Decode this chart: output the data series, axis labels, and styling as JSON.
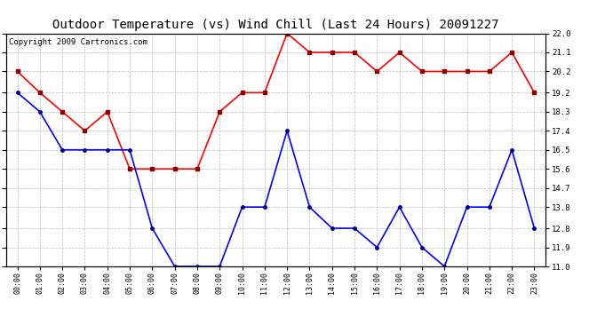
{
  "title": "Outdoor Temperature (vs) Wind Chill (Last 24 Hours) 20091227",
  "copyright": "Copyright 2009 Cartronics.com",
  "x_labels": [
    "00:00",
    "01:00",
    "02:00",
    "03:00",
    "04:00",
    "05:00",
    "06:00",
    "07:00",
    "08:00",
    "09:00",
    "10:00",
    "11:00",
    "12:00",
    "13:00",
    "14:00",
    "15:00",
    "16:00",
    "17:00",
    "18:00",
    "19:00",
    "20:00",
    "21:00",
    "22:00",
    "23:00"
  ],
  "temp_red": [
    20.2,
    19.2,
    18.3,
    17.4,
    18.3,
    15.6,
    15.6,
    15.6,
    15.6,
    18.3,
    19.2,
    19.2,
    22.0,
    21.1,
    21.1,
    21.1,
    20.2,
    21.1,
    20.2,
    20.2,
    20.2,
    20.2,
    21.1,
    19.2
  ],
  "wind_chill_blue": [
    19.2,
    18.3,
    16.5,
    16.5,
    16.5,
    16.5,
    12.8,
    11.0,
    11.0,
    11.0,
    13.8,
    13.8,
    17.4,
    13.8,
    12.8,
    12.8,
    11.9,
    13.8,
    11.9,
    11.0,
    13.8,
    13.8,
    16.5,
    12.8
  ],
  "ylim": [
    11.0,
    22.0
  ],
  "yticks": [
    11.0,
    11.9,
    12.8,
    13.8,
    14.7,
    15.6,
    16.5,
    17.4,
    18.3,
    19.2,
    20.2,
    21.1,
    22.0
  ],
  "red_color": "#ff0000",
  "blue_color": "#0000ff",
  "bg_color": "#ffffff",
  "plot_bg_color": "#ffffff",
  "grid_color": "#bbbbbb",
  "title_fontsize": 10,
  "copyright_fontsize": 6.5
}
